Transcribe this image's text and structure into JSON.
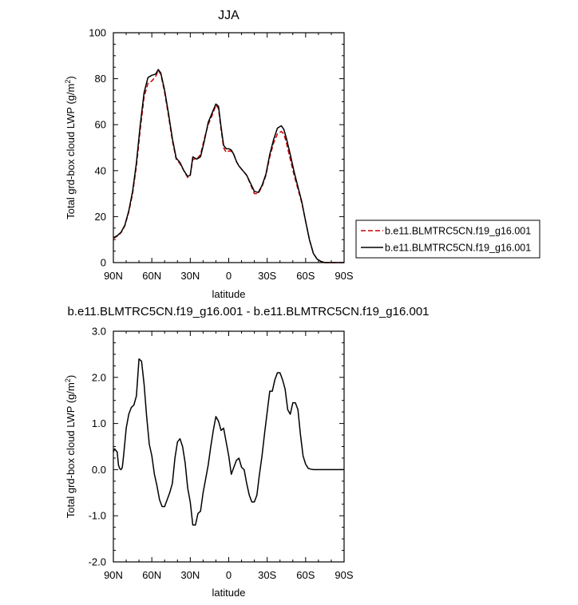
{
  "chart_data": [
    {
      "type": "line",
      "title": "JJA",
      "xlabel": "latitude",
      "ylabel": "Total grd-box cloud LWP (g/m",
      "ylabel_sup": "2",
      "ylabel_close": ")",
      "xlim": [
        -90,
        90
      ],
      "ylim": [
        0,
        100
      ],
      "xticks": [
        -90,
        -60,
        -30,
        0,
        30,
        60,
        90
      ],
      "xticklabels": [
        "90N",
        "60N",
        "30N",
        "0",
        "30S",
        "60S",
        "90S"
      ],
      "yticks": [
        0,
        20,
        40,
        60,
        80,
        100
      ],
      "yticklabels": [
        "0",
        "20",
        "40",
        "60",
        "80",
        "100"
      ],
      "legend_position": "right",
      "series": [
        {
          "name": "b.e11.BLMTRC5CN.f19_g16.001",
          "color": "#cc0000",
          "dash": "dashed",
          "x": [
            -90,
            -87,
            -84,
            -81,
            -78,
            -75,
            -72,
            -69,
            -66,
            -63,
            -60,
            -57,
            -55,
            -53,
            -50,
            -47,
            -44,
            -41,
            -38,
            -35,
            -32,
            -30,
            -28,
            -25,
            -22,
            -19,
            -16,
            -13,
            -10,
            -8,
            -6,
            -4,
            -2,
            0,
            2,
            4,
            6,
            8,
            11,
            14,
            17,
            20,
            23,
            26,
            29,
            32,
            35,
            38,
            41,
            43,
            45,
            48,
            51,
            54,
            57,
            60,
            63,
            66,
            69,
            72,
            75,
            78,
            81,
            84,
            87,
            90
          ],
          "y": [
            10.5,
            11.5,
            13,
            16,
            22,
            30,
            42,
            58,
            72,
            78,
            79,
            81,
            83.5,
            82,
            74,
            64,
            53,
            45,
            43,
            40,
            37,
            38,
            45,
            45,
            47,
            54,
            60,
            64,
            68.5,
            67,
            58,
            50,
            48,
            48.5,
            48.5,
            47,
            44,
            42,
            40,
            38,
            34,
            30,
            30,
            33,
            38,
            46,
            52,
            56,
            57,
            56,
            52,
            45,
            38,
            32,
            26,
            18,
            10,
            4,
            1.5,
            0.5,
            0,
            0,
            0,
            0,
            0,
            0
          ]
        },
        {
          "name": "b.e11.BLMTRC5CN.f19_g16.001",
          "color": "#000000",
          "dash": "solid",
          "x": [
            -90,
            -87,
            -84,
            -81,
            -78,
            -75,
            -72,
            -69,
            -66,
            -63,
            -60,
            -57,
            -55,
            -53,
            -50,
            -47,
            -44,
            -41,
            -38,
            -35,
            -32,
            -30,
            -28,
            -25,
            -22,
            -19,
            -16,
            -13,
            -10,
            -8,
            -6,
            -4,
            -2,
            0,
            2,
            4,
            6,
            8,
            11,
            14,
            17,
            20,
            23,
            26,
            29,
            32,
            35,
            38,
            41,
            43,
            45,
            48,
            51,
            54,
            57,
            60,
            63,
            66,
            69,
            72,
            75,
            78,
            81,
            84,
            87,
            90
          ],
          "y": [
            10.8,
            11.7,
            13.2,
            16.3,
            22.5,
            31,
            43.5,
            60,
            74,
            80.5,
            81.5,
            82,
            84,
            82.5,
            75,
            65,
            54,
            45.5,
            43.5,
            40,
            37.5,
            38,
            46,
            45,
            46,
            53,
            61,
            65,
            69,
            68,
            59,
            51,
            49.5,
            49.5,
            49,
            47,
            44,
            42,
            40,
            38,
            34.5,
            31,
            30.5,
            33.5,
            38.5,
            47,
            53.5,
            58.5,
            59.5,
            58,
            54,
            47,
            39.5,
            33,
            26.5,
            18,
            10,
            4,
            1.5,
            0.5,
            0,
            0,
            0,
            0,
            0,
            0
          ]
        }
      ]
    },
    {
      "type": "line",
      "title": "b.e11.BLMTRC5CN.f19_g16.001 - b.e11.BLMTRC5CN.f19_g16.001",
      "xlabel": "latitude",
      "ylabel": "Total grd-box cloud LWP (g/m",
      "ylabel_sup": "2",
      "ylabel_close": ")",
      "xlim": [
        -90,
        90
      ],
      "ylim": [
        -2,
        3
      ],
      "xticks": [
        -90,
        -60,
        -30,
        0,
        30,
        60,
        90
      ],
      "xticklabels": [
        "90N",
        "60N",
        "30N",
        "0",
        "30S",
        "60S",
        "90S"
      ],
      "yticks": [
        -2,
        -1,
        0,
        1,
        2,
        3
      ],
      "yticklabels": [
        "-2.0",
        "-1.0",
        "0.0",
        "1.0",
        "2.0",
        "3.0"
      ],
      "series": [
        {
          "color": "#000000",
          "dash": "solid",
          "x": [
            -90,
            -89,
            -87,
            -86,
            -85,
            -84,
            -83,
            -82,
            -80,
            -78,
            -76,
            -74,
            -72,
            -70,
            -68,
            -66,
            -64,
            -62,
            -60,
            -58,
            -56,
            -54,
            -52,
            -50,
            -48,
            -46,
            -44,
            -42,
            -40,
            -38,
            -36,
            -34,
            -32,
            -30,
            -28,
            -26,
            -24,
            -22,
            -20,
            -18,
            -16,
            -14,
            -12,
            -10,
            -8,
            -6,
            -4,
            -2,
            0,
            2,
            4,
            6,
            8,
            10,
            12,
            14,
            16,
            18,
            20,
            22,
            24,
            26,
            28,
            30,
            32,
            34,
            36,
            38,
            40,
            42,
            44,
            46,
            48,
            50,
            52,
            54,
            56,
            58,
            60,
            62,
            64,
            66,
            68,
            70,
            72,
            74,
            76,
            78,
            80,
            82,
            84,
            86,
            88,
            90
          ],
          "y": [
            0.38,
            0.45,
            0.38,
            0.1,
            0.02,
            0.0,
            0.05,
            0.3,
            0.9,
            1.2,
            1.35,
            1.4,
            1.6,
            2.4,
            2.35,
            1.85,
            1.15,
            0.55,
            0.3,
            -0.1,
            -0.35,
            -0.65,
            -0.8,
            -0.8,
            -0.65,
            -0.5,
            -0.3,
            0.25,
            0.6,
            0.67,
            0.5,
            0.15,
            -0.4,
            -0.7,
            -1.2,
            -1.2,
            -0.95,
            -0.9,
            -0.5,
            -0.2,
            0.1,
            0.5,
            0.85,
            1.15,
            1.05,
            0.85,
            0.9,
            0.6,
            0.3,
            -0.1,
            0.05,
            0.2,
            0.25,
            0.05,
            0.0,
            -0.3,
            -0.55,
            -0.7,
            -0.7,
            -0.55,
            -0.1,
            0.3,
            0.8,
            1.25,
            1.7,
            1.7,
            1.95,
            2.1,
            2.1,
            1.95,
            1.75,
            1.3,
            1.2,
            1.45,
            1.45,
            1.3,
            0.75,
            0.3,
            0.12,
            0.03,
            0.01,
            0.0,
            0.0,
            0.0,
            0.0,
            0.0,
            0.0,
            0.0,
            0.0,
            0.0,
            0.0,
            0.0,
            0.0,
            0.0
          ]
        }
      ]
    }
  ]
}
